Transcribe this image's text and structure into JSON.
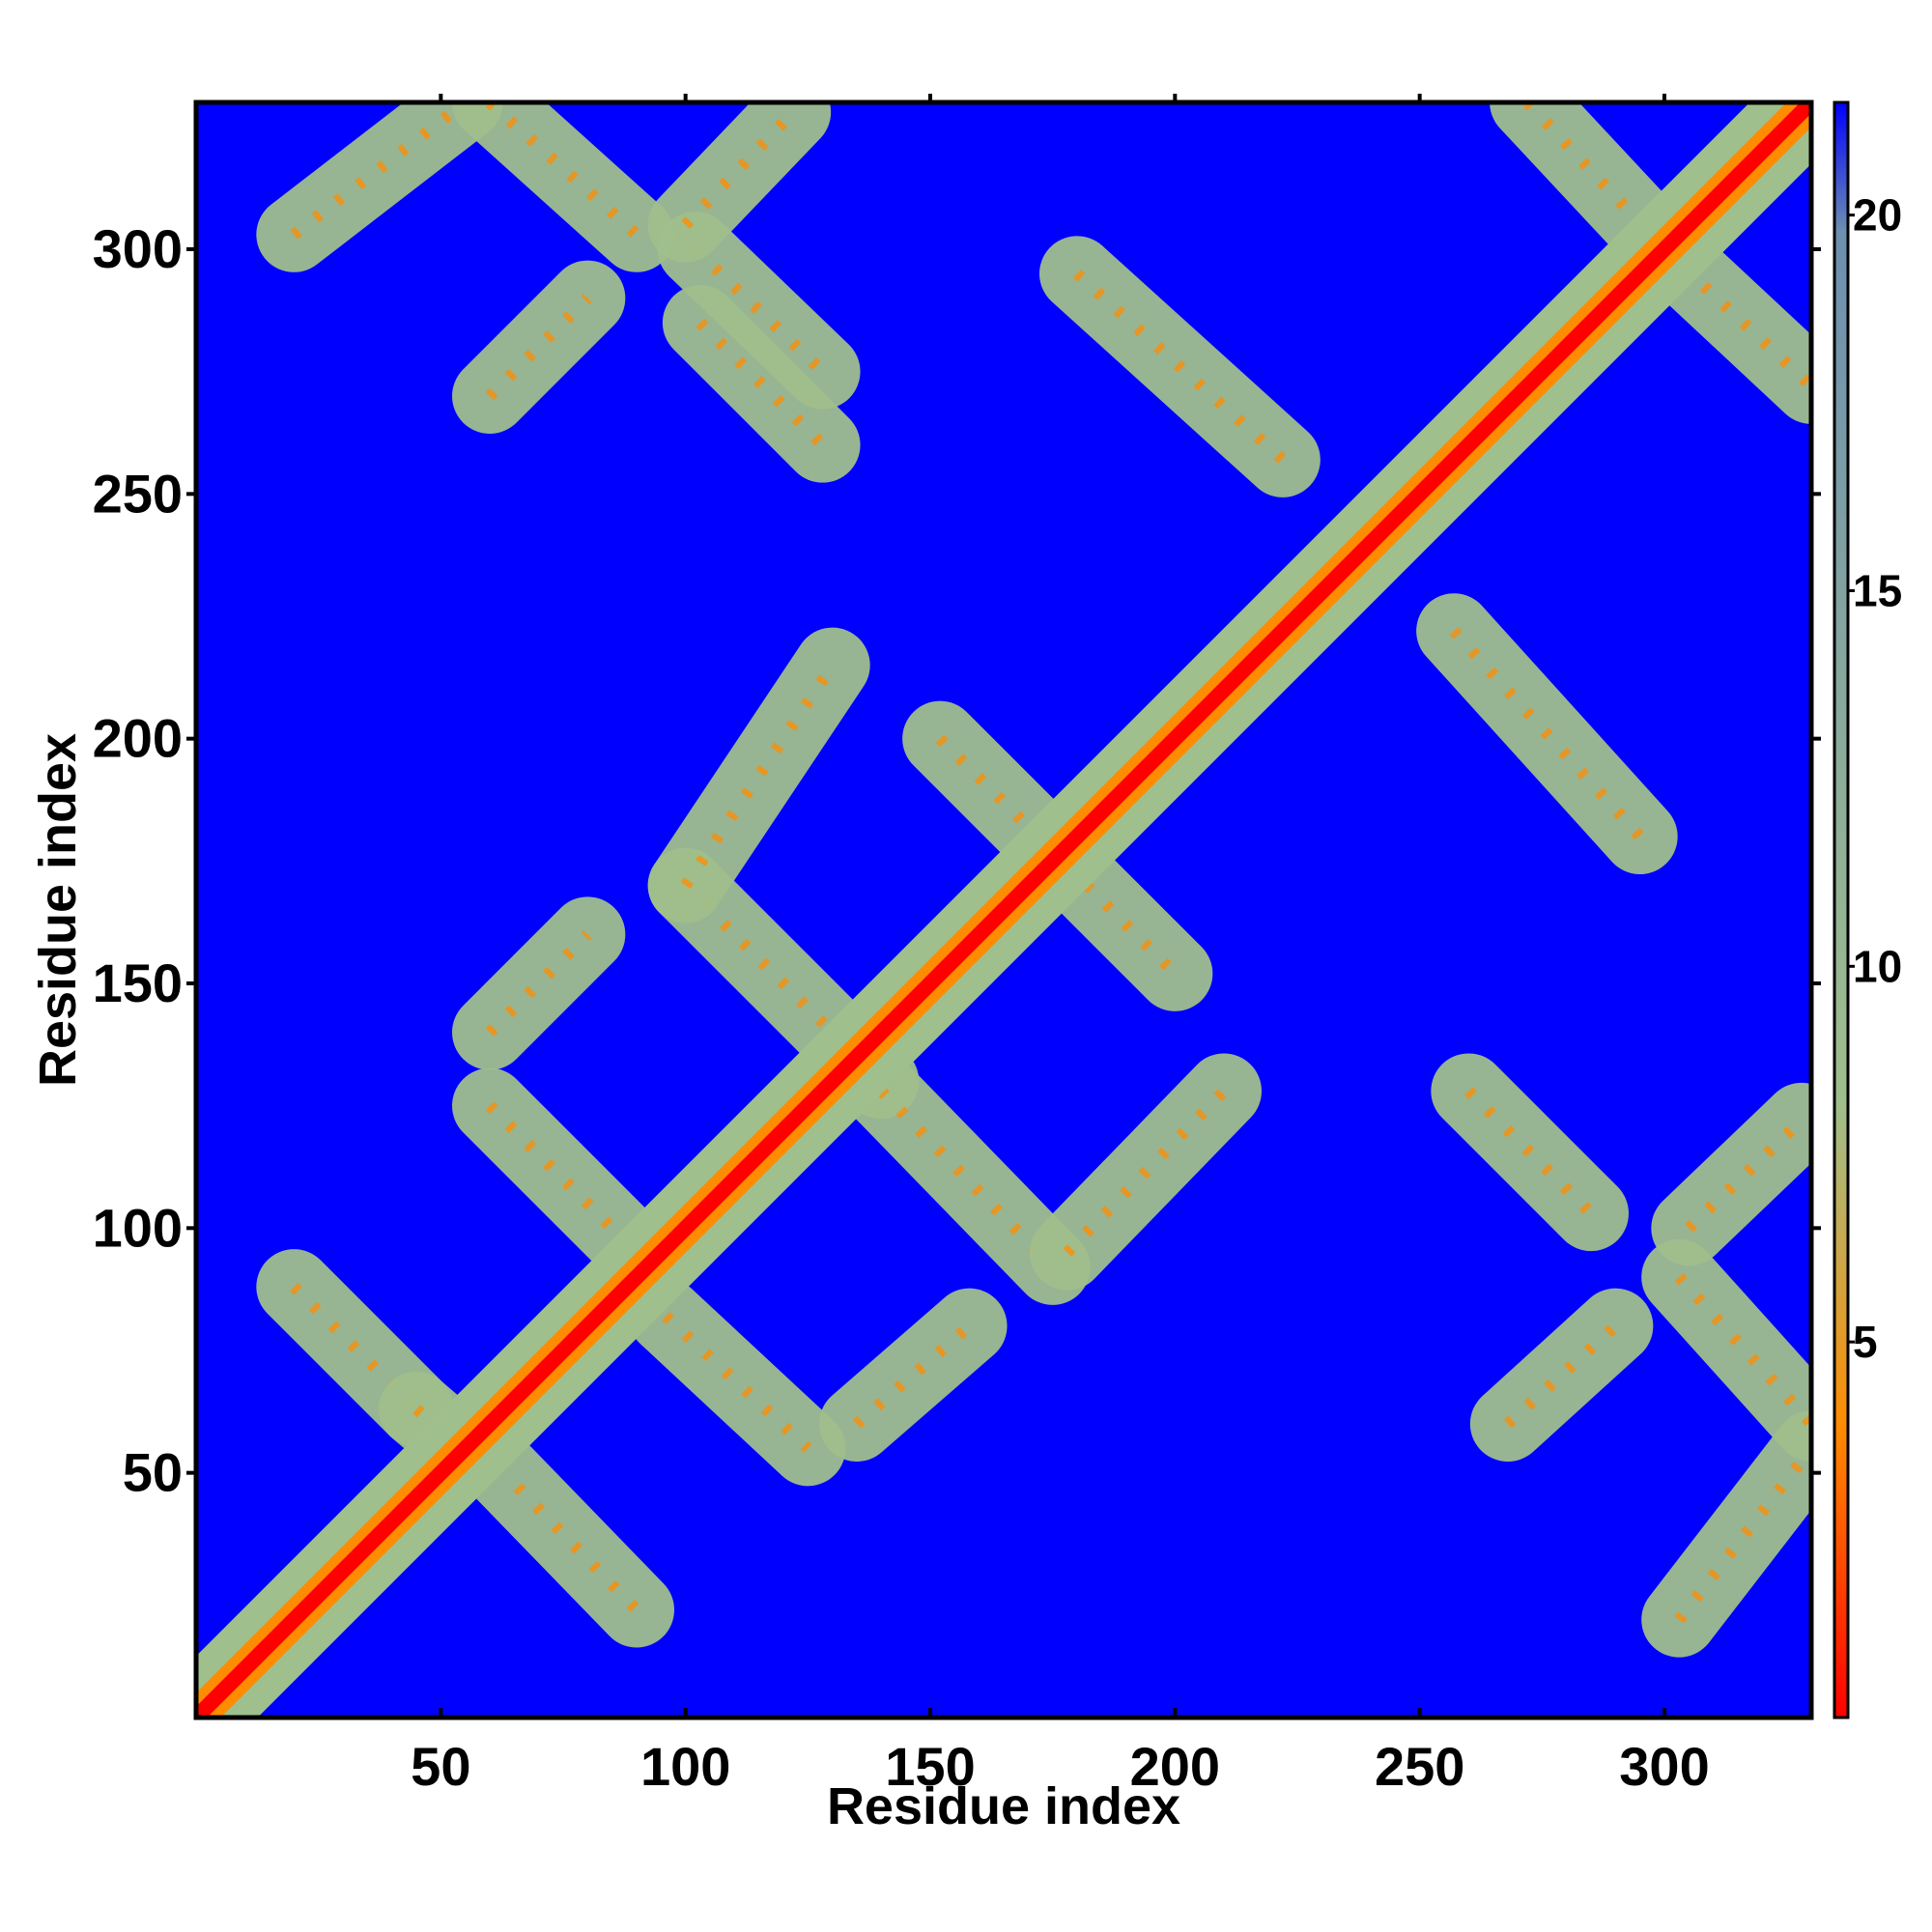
{
  "chart_data": {
    "type": "heatmap",
    "title": "",
    "xlabel": "Residue index",
    "ylabel": "Residue index",
    "xlim": [
      0,
      330
    ],
    "ylim": [
      0,
      330
    ],
    "x_ticks": [
      50,
      100,
      150,
      200,
      250,
      300
    ],
    "y_ticks": [
      50,
      100,
      150,
      200,
      250,
      300
    ],
    "colorbar": {
      "range": [
        0,
        21.5
      ],
      "ticks": [
        5,
        10,
        15,
        20
      ],
      "colors": {
        "low": "#ff0000",
        "mid_low": "#ff8c00",
        "mid": "#9fbf8c",
        "high": "#6d8fb0",
        "max": "#0000ff"
      }
    },
    "background_color": "#0000ff",
    "symmetric": true,
    "contact_bands": [
      {
        "x_start": 20,
        "x_end": 45,
        "y_start": 88,
        "y_end": 63,
        "shape": "antidiagonal"
      },
      {
        "x_start": 45,
        "x_end": 52,
        "y_start": 63,
        "y_end": 57,
        "shape": "antidiagonal"
      },
      {
        "x_start": 58,
        "x_end": 90,
        "y_start": 55,
        "y_end": 22,
        "shape": "antidiagonal"
      },
      {
        "x_start": 60,
        "x_end": 90,
        "y_start": 125,
        "y_end": 95,
        "shape": "antidiagonal"
      },
      {
        "x_start": 96,
        "x_end": 125,
        "y_start": 82,
        "y_end": 55,
        "shape": "antidiagonal"
      },
      {
        "x_start": 135,
        "x_end": 158,
        "y_start": 60,
        "y_end": 80,
        "shape": "diagonal"
      },
      {
        "x_start": 60,
        "x_end": 80,
        "y_start": 140,
        "y_end": 160,
        "shape": "diagonal"
      },
      {
        "x_start": 100,
        "x_end": 140,
        "y_start": 170,
        "y_end": 130,
        "shape": "antidiagonal"
      },
      {
        "x_start": 140,
        "x_end": 175,
        "y_start": 128,
        "y_end": 92,
        "shape": "antidiagonal"
      },
      {
        "x_start": 178,
        "x_end": 210,
        "y_start": 95,
        "y_end": 128,
        "shape": "diagonal"
      },
      {
        "x_start": 100,
        "x_end": 130,
        "y_start": 170,
        "y_end": 215,
        "shape": "diagonal"
      },
      {
        "x_start": 182,
        "x_end": 200,
        "y_start": 170,
        "y_end": 152,
        "shape": "antidiagonal"
      },
      {
        "x_start": 152,
        "x_end": 170,
        "y_start": 200,
        "y_end": 182,
        "shape": "antidiagonal"
      },
      {
        "x_start": 257,
        "x_end": 295,
        "y_start": 222,
        "y_end": 180,
        "shape": "antidiagonal"
      },
      {
        "x_start": 180,
        "x_end": 222,
        "y_start": 295,
        "y_end": 257,
        "shape": "antidiagonal"
      },
      {
        "x_start": 260,
        "x_end": 285,
        "y_start": 128,
        "y_end": 103,
        "shape": "antidiagonal"
      },
      {
        "x_start": 103,
        "x_end": 128,
        "y_start": 285,
        "y_end": 260,
        "shape": "antidiagonal"
      },
      {
        "x_start": 303,
        "x_end": 330,
        "y_start": 20,
        "y_end": 55,
        "shape": "diagonal"
      },
      {
        "x_start": 20,
        "x_end": 55,
        "y_start": 303,
        "y_end": 330,
        "shape": "diagonal"
      },
      {
        "x_start": 303,
        "x_end": 330,
        "y_start": 90,
        "y_end": 60,
        "shape": "antidiagonal"
      },
      {
        "x_start": 60,
        "x_end": 90,
        "y_start": 330,
        "y_end": 303,
        "shape": "antidiagonal"
      },
      {
        "x_start": 300,
        "x_end": 330,
        "y_start": 300,
        "y_end": 272,
        "shape": "antidiagonal"
      },
      {
        "x_start": 272,
        "x_end": 300,
        "y_start": 330,
        "y_end": 300,
        "shape": "antidiagonal"
      },
      {
        "x_start": 60,
        "x_end": 80,
        "y_start": 270,
        "y_end": 290,
        "shape": "diagonal"
      },
      {
        "x_start": 102,
        "x_end": 128,
        "y_start": 300,
        "y_end": 275,
        "shape": "antidiagonal"
      },
      {
        "x_start": 268,
        "x_end": 290,
        "y_start": 60,
        "y_end": 80,
        "shape": "diagonal"
      },
      {
        "x_start": 305,
        "x_end": 328,
        "y_start": 100,
        "y_end": 122,
        "shape": "diagonal"
      },
      {
        "x_start": 100,
        "x_end": 122,
        "y_start": 305,
        "y_end": 328,
        "shape": "diagonal"
      }
    ]
  }
}
